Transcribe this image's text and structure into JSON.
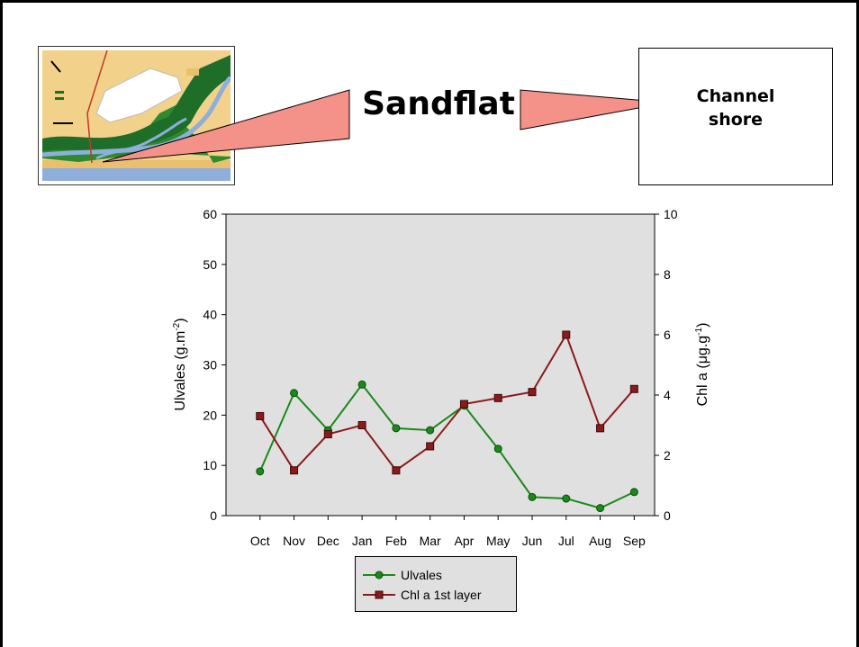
{
  "slide": {
    "title_label": "Sandflat",
    "channel_label_line1": "Channel",
    "channel_label_line2": "shore"
  },
  "colors": {
    "ulvales": "#1a8a1a",
    "chl": "#8b1a1a",
    "plot_bg": "#e0e0e0",
    "callout_fill": "#f4928a"
  },
  "chart_data": {
    "type": "line",
    "categories": [
      "Oct",
      "Nov",
      "Dec",
      "Jan",
      "Feb",
      "Mar",
      "Apr",
      "May",
      "Jun",
      "Jul",
      "Aug",
      "Sep"
    ],
    "series": [
      {
        "name": "Ulvales",
        "axis": "left",
        "marker": "circle",
        "values": [
          8.8,
          24.4,
          17.0,
          26.1,
          17.4,
          17.0,
          21.9,
          13.3,
          3.7,
          3.4,
          1.5,
          4.7
        ]
      },
      {
        "name": "Chl a 1st layer",
        "axis": "right",
        "marker": "square",
        "values": [
          3.3,
          1.5,
          2.7,
          3.0,
          1.5,
          2.3,
          3.7,
          3.9,
          4.1,
          6.0,
          2.9,
          4.2
        ]
      }
    ],
    "ylabel_left": "Ulvales (g.m",
    "ylabel_left_sup": "-2",
    "ylabel_left_end": ")",
    "ylabel_right": "Chl a (μg.g",
    "ylabel_right_sup": "-1",
    "ylabel_right_end": ")",
    "ylim_left": [
      0,
      60
    ],
    "yticks_left": [
      0,
      10,
      20,
      30,
      40,
      50,
      60
    ],
    "ylim_right": [
      0,
      10
    ],
    "yticks_right": [
      0,
      2,
      4,
      6,
      8,
      10
    ],
    "grid": false,
    "legend_position": "bottom-center"
  }
}
